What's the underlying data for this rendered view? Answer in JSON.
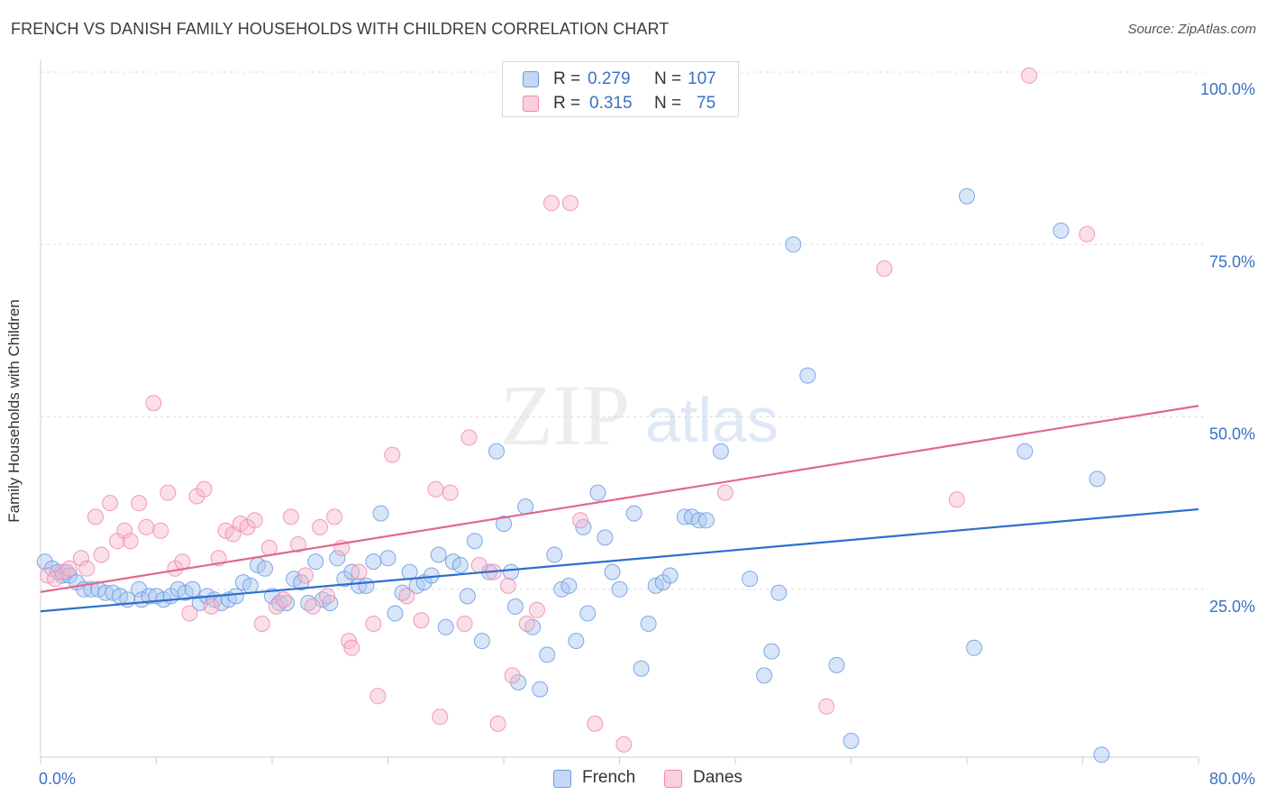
{
  "title": "FRENCH VS DANISH FAMILY HOUSEHOLDS WITH CHILDREN CORRELATION CHART",
  "source": "Source: ZipAtlas.com",
  "watermark": {
    "zip": "ZIP",
    "atlas": "atlas"
  },
  "stats_legend": [
    {
      "r_label": "R =",
      "r_value": "0.279",
      "n_label": "N =",
      "n_value": "107",
      "color": "#6b9be0"
    },
    {
      "r_label": "R =",
      "r_value": "0.315",
      "n_label": "N =",
      "n_value": "75",
      "color": "#f08aab"
    }
  ],
  "chart_data": {
    "type": "scatter",
    "title": "FRENCH VS DANISH FAMILY HOUSEHOLDS WITH CHILDREN CORRELATION CHART",
    "xlabel": "",
    "ylabel": "Family Households with Children",
    "xlim": [
      0,
      80
    ],
    "ylim": [
      0,
      100
    ],
    "x_tick_labels": [
      "0.0%",
      "80.0%"
    ],
    "y_tick_labels": [
      "25.0%",
      "50.0%",
      "75.0%",
      "100.0%"
    ],
    "y_ticks": [
      25,
      50,
      75,
      100
    ],
    "grid": true,
    "legend_placement": "bottom-center",
    "series": [
      {
        "name": "French",
        "color": "#6b9be0",
        "trend": {
          "x": [
            0,
            80
          ],
          "y": [
            21.8,
            36.6
          ]
        },
        "points": [
          [
            0.3,
            29
          ],
          [
            0.8,
            28
          ],
          [
            1.2,
            27.5
          ],
          [
            1.5,
            27
          ],
          [
            1.8,
            27.5
          ],
          [
            2,
            27
          ],
          [
            2.5,
            26
          ],
          [
            3,
            25
          ],
          [
            3.5,
            25
          ],
          [
            4,
            25
          ],
          [
            4.5,
            24.5
          ],
          [
            5,
            24.5
          ],
          [
            5.5,
            24
          ],
          [
            6,
            23.5
          ],
          [
            6.8,
            25
          ],
          [
            7,
            23.5
          ],
          [
            7.5,
            24
          ],
          [
            8,
            24
          ],
          [
            8.5,
            23.5
          ],
          [
            9,
            24
          ],
          [
            9.5,
            25
          ],
          [
            10,
            24.5
          ],
          [
            10.5,
            25
          ],
          [
            11,
            23
          ],
          [
            11.5,
            24
          ],
          [
            12,
            23.5
          ],
          [
            12.5,
            23
          ],
          [
            13,
            23.5
          ],
          [
            13.5,
            24
          ],
          [
            14,
            26
          ],
          [
            14.5,
            25.5
          ],
          [
            15,
            28.5
          ],
          [
            15.5,
            28
          ],
          [
            16,
            24
          ],
          [
            16.5,
            23
          ],
          [
            17,
            23
          ],
          [
            17.5,
            26.5
          ],
          [
            18,
            26
          ],
          [
            18.5,
            23
          ],
          [
            19,
            29
          ],
          [
            19.5,
            23.5
          ],
          [
            20,
            23
          ],
          [
            20.5,
            29.5
          ],
          [
            21,
            26.5
          ],
          [
            21.5,
            27.5
          ],
          [
            22,
            25.5
          ],
          [
            22.5,
            25.5
          ],
          [
            23,
            29
          ],
          [
            23.5,
            36
          ],
          [
            24,
            29.5
          ],
          [
            24.5,
            21.5
          ],
          [
            25,
            24.5
          ],
          [
            25.5,
            27.5
          ],
          [
            26,
            25.5
          ],
          [
            26.5,
            26
          ],
          [
            27,
            27
          ],
          [
            27.5,
            30
          ],
          [
            28,
            19.5
          ],
          [
            28.5,
            29
          ],
          [
            29,
            28.5
          ],
          [
            29.5,
            24
          ],
          [
            30,
            32
          ],
          [
            30.5,
            17.5
          ],
          [
            31,
            27.5
          ],
          [
            31.5,
            45
          ],
          [
            32,
            34.5
          ],
          [
            32.5,
            27.5
          ],
          [
            32.8,
            22.5
          ],
          [
            33,
            11.5
          ],
          [
            33.5,
            37
          ],
          [
            34,
            19.5
          ],
          [
            34.5,
            10.5
          ],
          [
            35,
            15.5
          ],
          [
            35.5,
            30
          ],
          [
            36,
            25
          ],
          [
            36.5,
            25.5
          ],
          [
            37,
            17.5
          ],
          [
            37.5,
            34
          ],
          [
            37.8,
            21.5
          ],
          [
            38.5,
            39
          ],
          [
            39,
            32.5
          ],
          [
            39.5,
            27.5
          ],
          [
            40,
            25
          ],
          [
            41,
            36
          ],
          [
            41.5,
            13.5
          ],
          [
            42,
            20
          ],
          [
            42.5,
            25.5
          ],
          [
            43,
            26
          ],
          [
            43.5,
            27
          ],
          [
            44.5,
            35.5
          ],
          [
            45,
            35.5
          ],
          [
            45.5,
            35
          ],
          [
            46,
            35
          ],
          [
            47,
            45
          ],
          [
            49,
            26.5
          ],
          [
            50,
            12.5
          ],
          [
            50.5,
            16
          ],
          [
            51,
            24.5
          ],
          [
            52,
            75
          ],
          [
            53,
            56
          ],
          [
            55,
            14
          ],
          [
            56,
            3
          ],
          [
            64,
            82
          ],
          [
            64.5,
            16.5
          ],
          [
            68,
            45
          ],
          [
            70.5,
            77
          ],
          [
            73,
            41
          ],
          [
            73.3,
            1
          ]
        ]
      },
      {
        "name": "Danes",
        "color": "#f08aab",
        "trend": {
          "x": [
            0,
            80
          ],
          "y": [
            24.6,
            51.6
          ]
        },
        "points": [
          [
            0.5,
            27
          ],
          [
            1,
            26.5
          ],
          [
            1.5,
            27.5
          ],
          [
            2,
            28
          ],
          [
            2.8,
            29.5
          ],
          [
            3.2,
            28
          ],
          [
            3.8,
            35.5
          ],
          [
            4.2,
            30
          ],
          [
            4.8,
            37.5
          ],
          [
            5.3,
            32
          ],
          [
            5.8,
            33.5
          ],
          [
            6.2,
            32
          ],
          [
            6.8,
            37.5
          ],
          [
            7.3,
            34
          ],
          [
            7.8,
            52
          ],
          [
            8.3,
            33.5
          ],
          [
            8.8,
            39
          ],
          [
            9.3,
            28
          ],
          [
            9.8,
            29
          ],
          [
            10.3,
            21.5
          ],
          [
            10.8,
            38.5
          ],
          [
            11.3,
            39.5
          ],
          [
            11.8,
            22.5
          ],
          [
            12.3,
            29.5
          ],
          [
            12.8,
            33.5
          ],
          [
            13.3,
            33
          ],
          [
            13.8,
            34.5
          ],
          [
            14.3,
            34
          ],
          [
            14.8,
            35
          ],
          [
            15.3,
            20
          ],
          [
            15.8,
            31
          ],
          [
            16.3,
            22.5
          ],
          [
            16.8,
            23.5
          ],
          [
            17.3,
            35.5
          ],
          [
            17.8,
            31.5
          ],
          [
            18.3,
            27
          ],
          [
            18.8,
            22.5
          ],
          [
            19.3,
            34
          ],
          [
            19.8,
            24
          ],
          [
            20.3,
            35.5
          ],
          [
            20.8,
            31
          ],
          [
            21.3,
            17.5
          ],
          [
            21.5,
            16.5
          ],
          [
            22,
            27.5
          ],
          [
            23,
            20
          ],
          [
            23.3,
            9.5
          ],
          [
            24.3,
            44.5
          ],
          [
            25.3,
            24
          ],
          [
            26.3,
            20.5
          ],
          [
            27.3,
            39.5
          ],
          [
            27.6,
            6.5
          ],
          [
            28.3,
            39
          ],
          [
            29.3,
            20
          ],
          [
            29.6,
            47
          ],
          [
            30.3,
            28.5
          ],
          [
            31.3,
            27.5
          ],
          [
            31.6,
            5.5
          ],
          [
            32.3,
            25.5
          ],
          [
            32.6,
            12.5
          ],
          [
            33.6,
            20
          ],
          [
            34.3,
            22
          ],
          [
            35.3,
            81
          ],
          [
            36.6,
            81
          ],
          [
            37.3,
            35
          ],
          [
            38.3,
            5.5
          ],
          [
            40.3,
            2.5
          ],
          [
            47.3,
            39
          ],
          [
            54.3,
            8
          ],
          [
            58.3,
            71.5
          ],
          [
            63.3,
            38
          ],
          [
            68.3,
            99.5
          ],
          [
            72.3,
            76.5
          ]
        ]
      }
    ]
  }
}
